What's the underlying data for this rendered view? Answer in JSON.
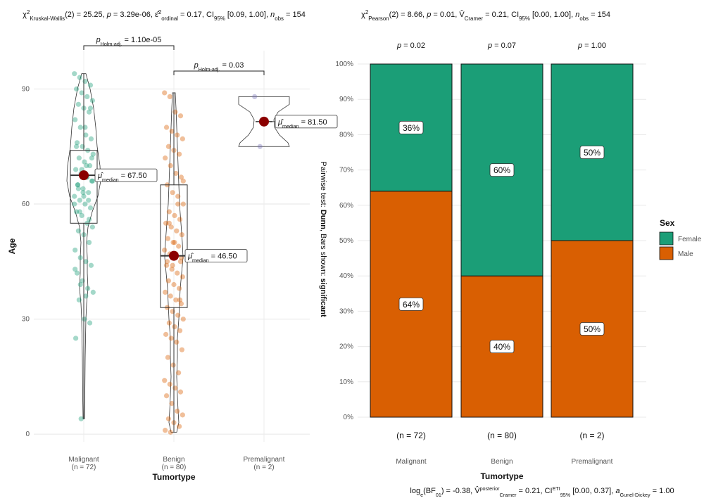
{
  "chart_data": [
    {
      "type": "violin-box-scatter",
      "title_text": "χ²Kruskal-Wallis(2) = 25.25, p = 3.29e-06, ε²ordinal = 0.17, CI95% [0.09, 1.00], nobs = 154",
      "xlabel": "Tumortype",
      "ylabel": "Age",
      "ylim": [
        -2,
        100
      ],
      "yticks": [
        0,
        30,
        60,
        90
      ],
      "grid": true,
      "side_label": "Pairwise test: Dunn, Bars shown: significant",
      "groups": [
        {
          "name": "Malignant",
          "n_label": "(n = 72)",
          "color": "#1b9e77",
          "median": 67.5,
          "q1": 55,
          "q3": 74,
          "min": 4,
          "max": 94,
          "median_label": "μ̂median = 67.50",
          "points": [
            94,
            93,
            92,
            91,
            90,
            89,
            88,
            87,
            86,
            85,
            84,
            82,
            80,
            78,
            77,
            76,
            75,
            74,
            73,
            72,
            71,
            70,
            69,
            68,
            67,
            66,
            65,
            64,
            63,
            62,
            61,
            60,
            59,
            58,
            57,
            55,
            54,
            53,
            52,
            50,
            48,
            46,
            45,
            44,
            42,
            40,
            38,
            37,
            35,
            30,
            29,
            25,
            4,
            70,
            72,
            65,
            63,
            61,
            60,
            58,
            80,
            85,
            75,
            69,
            67,
            66,
            64,
            62,
            56,
            43,
            39,
            36
          ]
        },
        {
          "name": "Benign",
          "n_label": "(n = 80)",
          "color": "#d95f02",
          "median": 46.5,
          "q1": 33,
          "q3": 65,
          "min": 0.5,
          "max": 89,
          "median_label": "μ̂median = 46.50",
          "points": [
            89,
            88,
            84,
            83,
            80,
            79,
            78,
            77,
            75,
            74,
            73,
            72,
            70,
            68,
            67,
            65,
            63,
            62,
            60,
            58,
            57,
            56,
            55,
            54,
            53,
            52,
            51,
            50,
            49,
            48,
            47,
            46,
            45,
            44,
            43,
            42,
            41,
            40,
            39,
            38,
            37,
            36,
            35,
            34,
            33,
            32,
            31,
            30,
            29,
            28,
            27,
            26,
            25,
            24,
            22,
            20,
            18,
            16,
            14,
            13,
            12,
            11,
            10,
            8,
            6,
            5,
            4,
            3,
            2,
            1,
            0.5,
            47,
            46,
            45,
            44,
            60,
            66,
            55,
            50,
            35
          ]
        },
        {
          "name": "Premalignant",
          "n_label": "(n = 2)",
          "color": "#7570b3",
          "median": 81.5,
          "q1": 78,
          "q3": 85,
          "min": 75,
          "max": 88,
          "median_label": "μ̂median = 81.50",
          "points": [
            88,
            75
          ]
        }
      ],
      "comparisons": [
        {
          "from": "Malignant",
          "to": "Benign",
          "label": "pHolm-adj. = 1.10e-05"
        },
        {
          "from": "Benign",
          "to": "Premalignant",
          "label": "pHolm-adj. = 0.03"
        }
      ]
    },
    {
      "type": "bar",
      "stacked": true,
      "title_text": "χ²Pearson(2) = 8.66, p = 0.01, V̂Cramer = 0.21, CI95% [0.00, 1.00], nobs = 154",
      "subtitle_text": "log e(BF01) = -0.38, V̂posterior Cramer = 0.21, CI ETI 95% [0.00, 0.37], aGunel-Dickey = 1.00",
      "xlabel": "Tumortype",
      "ylabel": "",
      "ylim": [
        0,
        100
      ],
      "yticks": [
        "0%",
        "10%",
        "20%",
        "30%",
        "40%",
        "50%",
        "60%",
        "70%",
        "80%",
        "90%",
        "100%"
      ],
      "categories": [
        "Malignant",
        "Benign",
        "Premalignant"
      ],
      "n_labels": [
        "(n = 72)",
        "(n = 80)",
        "(n = 2)"
      ],
      "p_labels": [
        "p = 0.02",
        "p = 0.07",
        "p = 1.00"
      ],
      "series": [
        {
          "name": "Male",
          "color": "#d95f02",
          "values": [
            64,
            40,
            50
          ],
          "labels": [
            "64%",
            "40%",
            "50%"
          ]
        },
        {
          "name": "Female",
          "color": "#1b9e77",
          "values": [
            36,
            60,
            50
          ],
          "labels": [
            "36%",
            "60%",
            "50%"
          ]
        }
      ],
      "legend": {
        "title": "Sex",
        "position": "right",
        "entries": [
          "Female",
          "Male"
        ]
      }
    }
  ]
}
